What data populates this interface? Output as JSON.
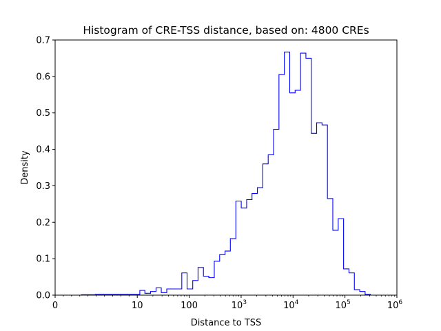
{
  "chart_data": {
    "type": "histogram",
    "title": "Histogram of CRE-TSS distance, based on: 4800 CREs",
    "xlabel": "Distance to TSS",
    "ylabel": "Density",
    "xscale": "symlog",
    "xlim": [
      0,
      1000000
    ],
    "ylim": [
      0,
      0.7
    ],
    "grid": false,
    "color": "#0000ff",
    "x_ticks": [
      {
        "value": 0,
        "base": "0",
        "exp": ""
      },
      {
        "value": 10,
        "base": "10",
        "exp": ""
      },
      {
        "value": 100,
        "base": "100",
        "exp": ""
      },
      {
        "value": 1000,
        "base": "10",
        "exp": "3"
      },
      {
        "value": 10000,
        "base": "10",
        "exp": "4"
      },
      {
        "value": 100000,
        "base": "10",
        "exp": "5"
      },
      {
        "value": 1000000,
        "base": "10",
        "exp": "6"
      }
    ],
    "y_ticks": [
      "0.0",
      "0.1",
      "0.2",
      "0.3",
      "0.4",
      "0.5",
      "0.6",
      "0.7"
    ],
    "bin_edges": [
      2.1,
      3.2,
      4.9,
      7.4,
      11.2,
      14,
      18,
      23,
      29,
      37,
      47,
      72,
      91,
      117,
      148,
      188,
      239,
      304,
      386,
      490,
      620,
      792,
      1005,
      1278,
      1620,
      2060,
      2616,
      3321,
      4218,
      5354,
      6798,
      8632,
      10960,
      13920,
      17680,
      22440,
      28490,
      36180,
      45930,
      58320,
      74050,
      94030,
      119400,
      151600,
      192500,
      244400,
      310300,
      394100,
      500400
    ],
    "densities": [
      0,
      0.001,
      0.002,
      0.002,
      0.013,
      0.005,
      0.01,
      0.02,
      0.007,
      0.017,
      0.017,
      0.061,
      0.017,
      0.04,
      0.076,
      0.052,
      0.048,
      0.093,
      0.111,
      0.121,
      0.155,
      0.258,
      0.239,
      0.262,
      0.279,
      0.295,
      0.36,
      0.385,
      0.455,
      0.605,
      0.667,
      0.555,
      0.562,
      0.664,
      0.65,
      0.444,
      0.473,
      0.467,
      0.265,
      0.178,
      0.21,
      0.072,
      0.061,
      0.015,
      0.01,
      0.002,
      0,
      0
    ]
  }
}
